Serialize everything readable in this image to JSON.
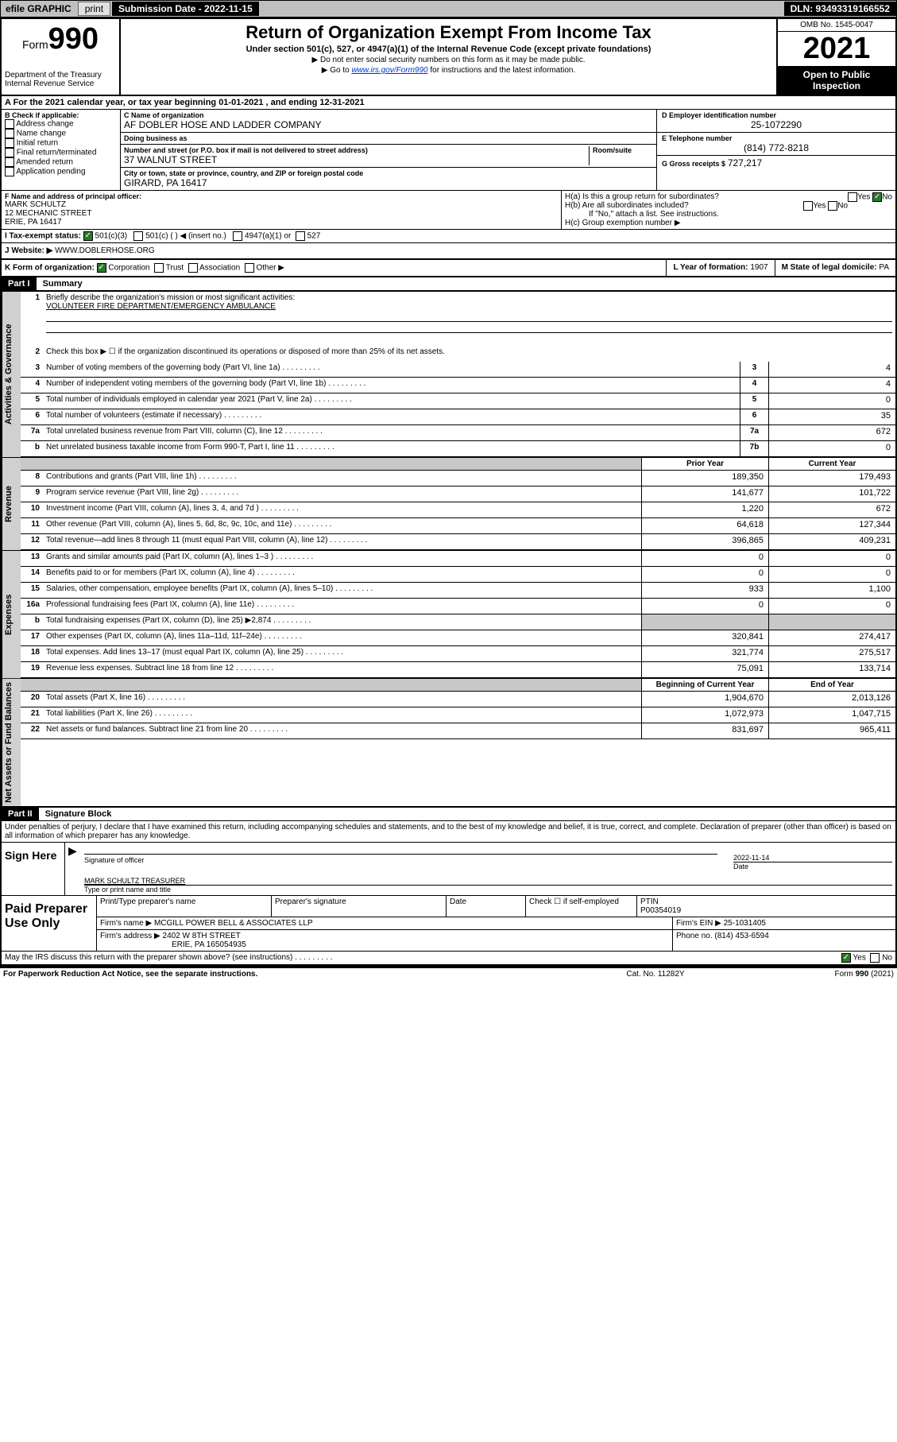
{
  "topbar": {
    "efile": "efile GRAPHIC",
    "print": "print",
    "submission": "Submission Date - 2022-11-15",
    "dln": "DLN: 93493319166552"
  },
  "header": {
    "form_word": "Form",
    "form_num": "990",
    "title": "Return of Organization Exempt From Income Tax",
    "subtitle": "Under section 501(c), 527, or 4947(a)(1) of the Internal Revenue Code (except private foundations)",
    "note1": "▶ Do not enter social security numbers on this form as it may be made public.",
    "note2_pre": "▶ Go to ",
    "note2_link": "www.irs.gov/Form990",
    "note2_post": " for instructions and the latest information.",
    "dept": "Department of the Treasury\nInternal Revenue Service",
    "omb": "OMB No. 1545-0047",
    "year": "2021",
    "open": "Open to Public Inspection"
  },
  "row_a": "A For the 2021 calendar year, or tax year beginning 01-01-2021   , and ending 12-31-2021",
  "section_b": {
    "label": "B Check if applicable:",
    "items": [
      "Address change",
      "Name change",
      "Initial return",
      "Final return/terminated",
      "Amended return",
      "Application pending"
    ]
  },
  "section_c": {
    "name_lbl": "C Name of organization",
    "name": "AF DOBLER HOSE AND LADDER COMPANY",
    "dba_lbl": "Doing business as",
    "dba": "",
    "addr_lbl": "Number and street (or P.O. box if mail is not delivered to street address)",
    "room_lbl": "Room/suite",
    "street": "37 WALNUT STREET",
    "city_lbl": "City or town, state or province, country, and ZIP or foreign postal code",
    "city": "GIRARD, PA   16417"
  },
  "section_d": {
    "ein_lbl": "D Employer identification number",
    "ein": "25-1072290",
    "phone_lbl": "E Telephone number",
    "phone": "(814) 772-8218",
    "gross_lbl": "G Gross receipts $",
    "gross": "727,217"
  },
  "section_f": {
    "lbl": "F Name and address of principal officer:",
    "name": "MARK SCHULTZ",
    "addr1": "12 MECHANIC STREET",
    "addr2": "ERIE, PA   16417"
  },
  "section_h": {
    "ha": "H(a)  Is this a group return for subordinates?",
    "hb": "H(b)  Are all subordinates included?",
    "hb_note": "If \"No,\" attach a list. See instructions.",
    "hc": "H(c)  Group exemption number ▶",
    "yes": "Yes",
    "no": "No"
  },
  "row_i": {
    "lbl": "I     Tax-exempt status:",
    "opt1": "501(c)(3)",
    "opt2": "501(c) (   ) ◀ (insert no.)",
    "opt3": "4947(a)(1) or",
    "opt4": "527"
  },
  "row_j": {
    "lbl": "J    Website: ▶",
    "val": "WWW.DOBLERHOSE.ORG"
  },
  "row_k": {
    "lbl": "K Form of organization:",
    "opt1": "Corporation",
    "opt2": "Trust",
    "opt3": "Association",
    "opt4": "Other ▶"
  },
  "row_lm": {
    "l_lbl": "L Year of formation:",
    "l_val": "1907",
    "m_lbl": "M State of legal domicile:",
    "m_val": "PA"
  },
  "part1": {
    "hdr": "Part I",
    "title": "Summary",
    "tabs": {
      "gov": "Activities & Governance",
      "rev": "Revenue",
      "exp": "Expenses",
      "net": "Net Assets or Fund Balances"
    },
    "line1_lbl": "Briefly describe the organization's mission or most significant activities:",
    "line1_val": "VOLUNTEER FIRE DEPARTMENT/EMERGENCY AMBULANCE",
    "line2": "Check this box ▶ ☐  if the organization discontinued its operations or disposed of more than 25% of its net assets.",
    "rows_gov": [
      {
        "n": "3",
        "d": "Number of voting members of the governing body (Part VI, line 1a)",
        "box": "3",
        "v": "4"
      },
      {
        "n": "4",
        "d": "Number of independent voting members of the governing body (Part VI, line 1b)",
        "box": "4",
        "v": "4"
      },
      {
        "n": "5",
        "d": "Total number of individuals employed in calendar year 2021 (Part V, line 2a)",
        "box": "5",
        "v": "0"
      },
      {
        "n": "6",
        "d": "Total number of volunteers (estimate if necessary)",
        "box": "6",
        "v": "35"
      },
      {
        "n": "7a",
        "d": "Total unrelated business revenue from Part VIII, column (C), line 12",
        "box": "7a",
        "v": "672"
      },
      {
        "n": "b",
        "d": "Net unrelated business taxable income from Form 990-T, Part I, line 11",
        "box": "7b",
        "v": "0"
      }
    ],
    "col_prior": "Prior Year",
    "col_current": "Current Year",
    "rows_rev": [
      {
        "n": "8",
        "d": "Contributions and grants (Part VIII, line 1h)",
        "p": "189,350",
        "c": "179,493"
      },
      {
        "n": "9",
        "d": "Program service revenue (Part VIII, line 2g)",
        "p": "141,677",
        "c": "101,722"
      },
      {
        "n": "10",
        "d": "Investment income (Part VIII, column (A), lines 3, 4, and 7d )",
        "p": "1,220",
        "c": "672"
      },
      {
        "n": "11",
        "d": "Other revenue (Part VIII, column (A), lines 5, 6d, 8c, 9c, 10c, and 11e)",
        "p": "64,618",
        "c": "127,344"
      },
      {
        "n": "12",
        "d": "Total revenue—add lines 8 through 11 (must equal Part VIII, column (A), line 12)",
        "p": "396,865",
        "c": "409,231"
      }
    ],
    "rows_exp": [
      {
        "n": "13",
        "d": "Grants and similar amounts paid (Part IX, column (A), lines 1–3 )",
        "p": "0",
        "c": "0",
        "grey": false
      },
      {
        "n": "14",
        "d": "Benefits paid to or for members (Part IX, column (A), line 4)",
        "p": "0",
        "c": "0",
        "grey": false
      },
      {
        "n": "15",
        "d": "Salaries, other compensation, employee benefits (Part IX, column (A), lines 5–10)",
        "p": "933",
        "c": "1,100",
        "grey": false
      },
      {
        "n": "16a",
        "d": "Professional fundraising fees (Part IX, column (A), line 11e)",
        "p": "0",
        "c": "0",
        "grey": false
      },
      {
        "n": "b",
        "d": "Total fundraising expenses (Part IX, column (D), line 25) ▶2,874",
        "p": "",
        "c": "",
        "grey": true
      },
      {
        "n": "17",
        "d": "Other expenses (Part IX, column (A), lines 11a–11d, 11f–24e)",
        "p": "320,841",
        "c": "274,417",
        "grey": false
      },
      {
        "n": "18",
        "d": "Total expenses. Add lines 13–17 (must equal Part IX, column (A), line 25)",
        "p": "321,774",
        "c": "275,517",
        "grey": false
      },
      {
        "n": "19",
        "d": "Revenue less expenses. Subtract line 18 from line 12",
        "p": "75,091",
        "c": "133,714",
        "grey": false
      }
    ],
    "col_begin": "Beginning of Current Year",
    "col_end": "End of Year",
    "rows_net": [
      {
        "n": "20",
        "d": "Total assets (Part X, line 16)",
        "p": "1,904,670",
        "c": "2,013,126"
      },
      {
        "n": "21",
        "d": "Total liabilities (Part X, line 26)",
        "p": "1,072,973",
        "c": "1,047,715"
      },
      {
        "n": "22",
        "d": "Net assets or fund balances. Subtract line 21 from line 20",
        "p": "831,697",
        "c": "965,411"
      }
    ]
  },
  "part2": {
    "hdr": "Part II",
    "title": "Signature Block",
    "penalties": "Under penalties of perjury, I declare that I have examined this return, including accompanying schedules and statements, and to the best of my knowledge and belief, it is true, correct, and complete. Declaration of preparer (other than officer) is based on all information of which preparer has any knowledge.",
    "sign_here": "Sign Here",
    "sig_officer": "Signature of officer",
    "date": "Date",
    "sig_date": "2022-11-14",
    "officer_name": "MARK SCHULTZ TREASURER",
    "type_name": "Type or print name and title",
    "paid": "Paid Preparer Use Only",
    "prep_name_lbl": "Print/Type preparer's name",
    "prep_sig_lbl": "Preparer's signature",
    "date_lbl": "Date",
    "check_self": "Check ☐ if self-employed",
    "ptin_lbl": "PTIN",
    "ptin": "P00354019",
    "firm_name_lbl": "Firm's name     ▶",
    "firm_name": "MCGILL POWER BELL & ASSOCIATES LLP",
    "firm_ein_lbl": "Firm's EIN ▶",
    "firm_ein": "25-1031405",
    "firm_addr_lbl": "Firm's address ▶",
    "firm_addr1": "2402 W 8TH STREET",
    "firm_addr2": "ERIE, PA   165054935",
    "firm_phone_lbl": "Phone no.",
    "firm_phone": "(814) 453-6594",
    "discuss": "May the IRS discuss this return with the preparer shown above? (see instructions)",
    "yes": "Yes",
    "no": "No"
  },
  "footer": {
    "left": "For Paperwork Reduction Act Notice, see the separate instructions.",
    "mid": "Cat. No. 11282Y",
    "right": "Form 990 (2021)"
  }
}
